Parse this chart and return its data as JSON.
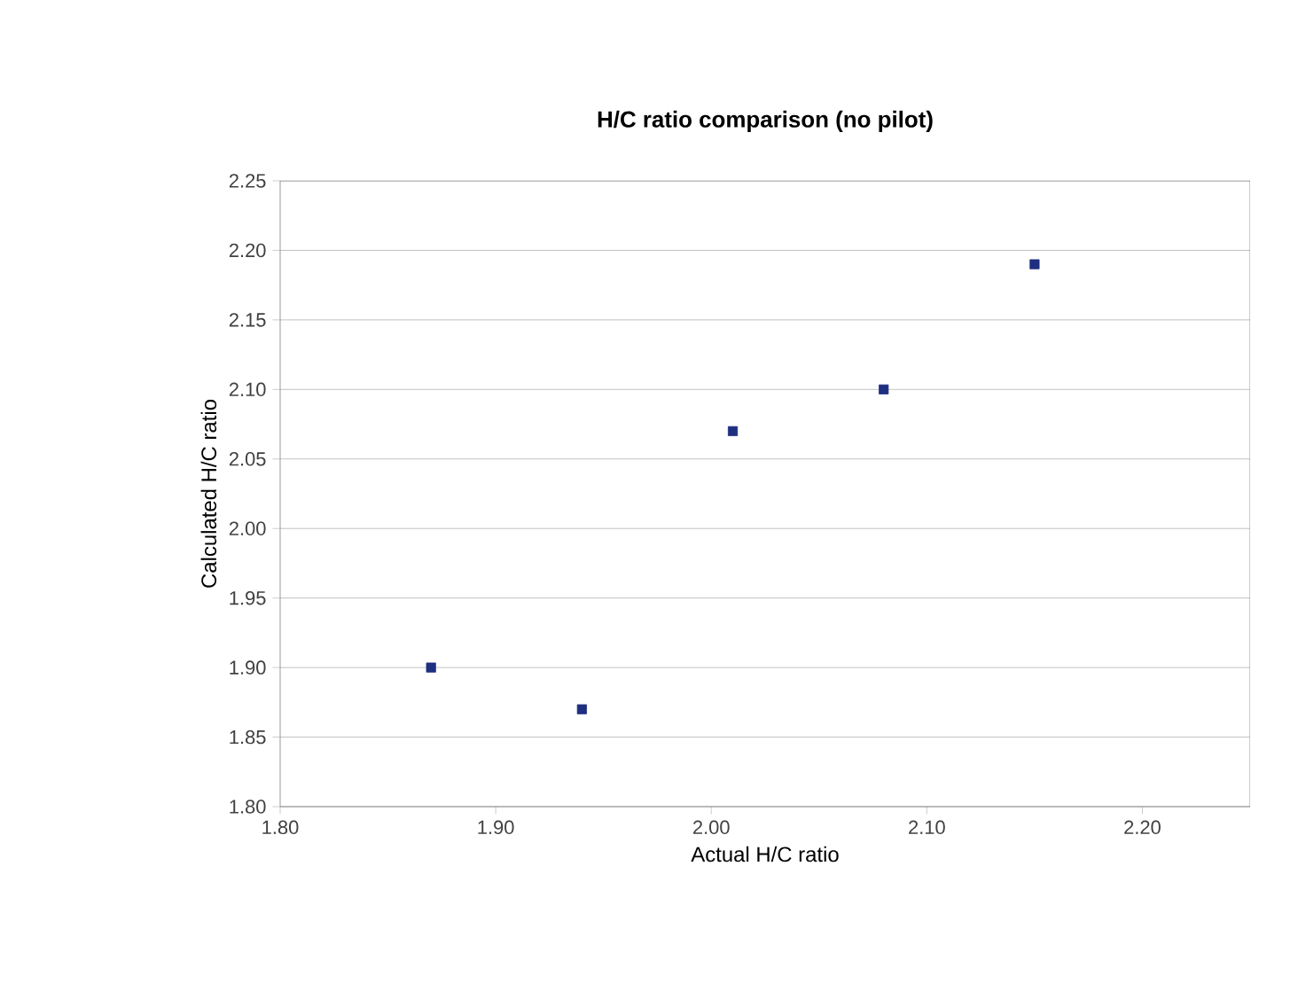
{
  "chart_data": {
    "type": "scatter",
    "title": "H/C ratio comparison (no pilot)",
    "xlabel": "Actual H/C ratio",
    "ylabel": "Calculated H/C ratio",
    "x": [
      1.87,
      1.94,
      2.01,
      2.08,
      2.15
    ],
    "series": [
      {
        "color": "#1f2f80",
        "values": [
          1.9,
          1.87,
          2.07,
          2.1,
          2.19
        ]
      }
    ],
    "xlim": [
      1.8,
      2.25
    ],
    "xticks": [
      {
        "value": 1.8,
        "label": "1.80"
      },
      {
        "value": 1.9,
        "label": "1.90"
      },
      {
        "value": 2.0,
        "label": "2.00"
      },
      {
        "value": 2.1,
        "label": "2.10"
      },
      {
        "value": 2.2,
        "label": "2.20"
      }
    ],
    "ylim": [
      1.8,
      2.25
    ],
    "yticks": [
      {
        "value": 1.8,
        "label": "1.80"
      },
      {
        "value": 1.85,
        "label": "1.85"
      },
      {
        "value": 1.9,
        "label": "1.90"
      },
      {
        "value": 1.95,
        "label": "1.95"
      },
      {
        "value": 2.0,
        "label": "2.00"
      },
      {
        "value": 2.05,
        "label": "2.05"
      },
      {
        "value": 2.1,
        "label": "2.10"
      },
      {
        "value": 2.15,
        "label": "2.15"
      },
      {
        "value": 2.2,
        "label": "2.20"
      },
      {
        "value": 2.25,
        "label": "2.25"
      }
    ],
    "grid": "y",
    "marker": "square"
  }
}
